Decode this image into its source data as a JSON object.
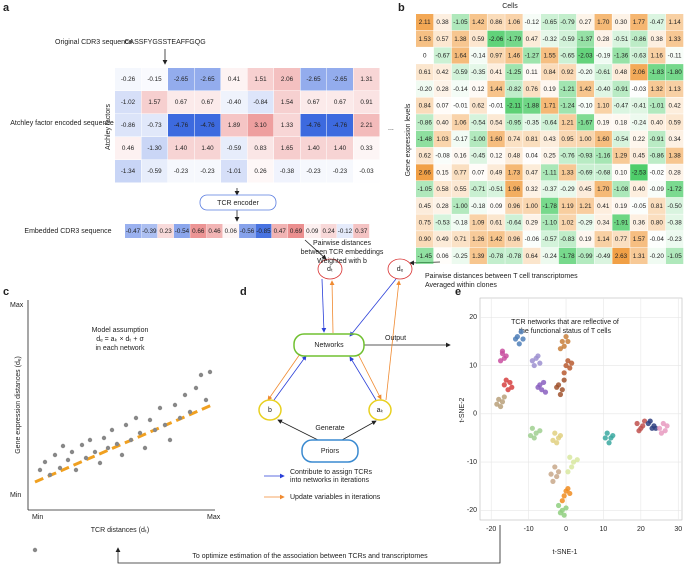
{
  "panel_letters": [
    "a",
    "b",
    "c",
    "d",
    "e"
  ],
  "panel_a": {
    "original_label": "Original CDR3 sequence",
    "sequence": "CASSFYGSSTEAFFGQG",
    "factors_label": "Atchley factors",
    "encoded_label": "Atchley factor encoded sequence",
    "ellipsis": "...",
    "matrix": [
      [
        "-0.26",
        "-0.15",
        "-2.65",
        "-2.65",
        "0.41",
        "1.51",
        "2.06",
        "-2.65",
        "-2.65",
        "1.31"
      ],
      [
        "-1.02",
        "1.57",
        "0.67",
        "0.67",
        "-0.40",
        "-0.84",
        "1.54",
        "0.67",
        "0.67",
        "0.91"
      ],
      [
        "-0.86",
        "-0.73",
        "-4.76",
        "-4.76",
        "1.89",
        "3.10",
        "1.33",
        "-4.76",
        "-4.76",
        "2.21"
      ],
      [
        "0.46",
        "-1.30",
        "1.40",
        "1.40",
        "-0.59",
        "0.83",
        "1.65",
        "1.40",
        "1.40",
        "0.33"
      ],
      [
        "-1.34",
        "-0.59",
        "-0.23",
        "-0.23",
        "-1.01",
        "0.26",
        "-0.38",
        "-0.23",
        "-0.23",
        "-0.03"
      ]
    ],
    "encoder": "TCR encoder",
    "embedded_label": "Embedded CDR3 sequence",
    "embedded": [
      "-0.47",
      "-0.39",
      "0.23",
      "-0.54",
      "0.66",
      "0.46",
      "0.06",
      "-0.56",
      "-0.85",
      "0.47",
      "0.69",
      "0.09",
      "0.24",
      "-0.12",
      "0.37"
    ],
    "tcr_distance_note": [
      "Pairwise distances",
      "between TCR embeddings",
      "Weighted with b"
    ]
  },
  "panel_b": {
    "columns_label": "Cells",
    "rows_label": "Gene expression levels",
    "matrix": [
      [
        "2.11",
        "0.38",
        "-1.05",
        "1.42",
        "0.86",
        "1.06",
        "-0.12",
        "-0.65",
        "-0.79",
        "0.27",
        "1.70",
        "0.30",
        "1.77",
        "-0.47",
        "1.14"
      ],
      [
        "1.53",
        "0.57",
        "1.38",
        "0.59",
        "-2.06",
        "-1.79",
        "0.47",
        "-0.32",
        "-0.59",
        "-1.37",
        "0.28",
        "-0.51",
        "-0.86",
        "0.38",
        "1.33"
      ],
      [
        "0",
        "-0.67",
        "1.64",
        "-0.14",
        "0.97",
        "1.46",
        "-1.27",
        "1.55",
        "-0.65",
        "-2.03",
        "-0.19",
        "-1.36",
        "-0.63",
        "1.16",
        "-0.11"
      ],
      [
        "0.61",
        "0.42",
        "-0.59",
        "-0.35",
        "0.41",
        "-1.25",
        "0.11",
        "0.84",
        "0.92",
        "-0.20",
        "-0.61",
        "0.48",
        "2.06",
        "-1.83",
        "-1.80"
      ],
      [
        "-0.20",
        "0.28",
        "-0.14",
        "0.12",
        "1.44",
        "-0.82",
        "0.76",
        "0.19",
        "-1.21",
        "1.42",
        "-0.40",
        "-0.91",
        "-0.03",
        "1.32",
        "1.13"
      ],
      [
        "0.84",
        "0.07",
        "-0.01",
        "0.62",
        "-0.01",
        "-2.11",
        "-1.88",
        "1.71",
        "-1.24",
        "-0.10",
        "1.10",
        "-0.47",
        "-0.41",
        "-1.01",
        "0.42"
      ],
      [
        "-0.86",
        "0.40",
        "1.06",
        "-0.54",
        "0.54",
        "-0.95",
        "-0.35",
        "-0.64",
        "1.21",
        "-1.67",
        "0.19",
        "0.18",
        "-0.24",
        "0.40",
        "0.59"
      ],
      [
        "-1.48",
        "1.03",
        "-0.17",
        "-1.00",
        "1.60",
        "0.74",
        "0.81",
        "0.43",
        "0.95",
        "1.00",
        "1.60",
        "-0.54",
        "0.22",
        "-0.91",
        "0.34"
      ],
      [
        "0.62",
        "-0.08",
        "0.16",
        "-0.45",
        "0.12",
        "0.48",
        "0.04",
        "0.25",
        "-0.76",
        "-0.93",
        "-1.16",
        "1.29",
        "0.45",
        "-0.86",
        "1.38"
      ],
      [
        "2.66",
        "0.15",
        "0.77",
        "0.07",
        "0.49",
        "1.73",
        "0.47",
        "-1.11",
        "1.33",
        "-0.69",
        "-0.68",
        "0.10",
        "-2.53",
        "-0.02",
        "0.28"
      ],
      [
        "-1.05",
        "0.58",
        "0.55",
        "-0.71",
        "-0.51",
        "1.96",
        "0.32",
        "-0.37",
        "-0.29",
        "0.45",
        "1.70",
        "-1.08",
        "0.40",
        "-0.09",
        "-1.72"
      ],
      [
        "0.45",
        "0.28",
        "-1.00",
        "-0.18",
        "0.09",
        "0.96",
        "1.00",
        "-1.78",
        "1.19",
        "1.21",
        "0.41",
        "0.19",
        "-0.05",
        "0.81",
        "-0.50"
      ],
      [
        "0.75",
        "-0.53",
        "-0.18",
        "1.09",
        "0.61",
        "-0.64",
        "0.29",
        "-1.10",
        "1.02",
        "-0.29",
        "0.34",
        "-1.91",
        "0.36",
        "0.80",
        "-0.38"
      ],
      [
        "0.90",
        "0.49",
        "0.71",
        "1.26",
        "1.42",
        "0.96",
        "-0.06",
        "-0.57",
        "-0.83",
        "0.19",
        "1.14",
        "0.77",
        "1.57",
        "-0.04",
        "-0.23"
      ],
      [
        "-1.45",
        "0.06",
        "-0.25",
        "1.39",
        "-0.78",
        "-0.78",
        "0.64",
        "-0.24",
        "-1.78",
        "-0.99",
        "-0.49",
        "2.63",
        "1.31",
        "-0.20",
        "-1.05"
      ]
    ],
    "transcriptome_note": [
      "Pairwise distances between T cell transcriptomes",
      "Averaged within clones"
    ]
  },
  "panel_c": {
    "model_lines": [
      "Model assumption",
      "dₑ = aₖ × dₜ + σ",
      "in each network"
    ],
    "ylabel": "Gene expression distances (dₑ)",
    "xlabel": "TCR distances (dₜ)",
    "y_max": "Max",
    "y_min": "Min",
    "x_min": "Min",
    "x_max": "Max"
  },
  "panel_d": {
    "node_dt": "dₜ",
    "node_de": "dₑ",
    "networks": "Networks",
    "node_b": "b",
    "node_ak": "aₖ",
    "priors": "Priors",
    "generate": "Generate",
    "output": "Output",
    "legend_blue": [
      "Contribute to assign TCRs",
      "into networks in iterations"
    ],
    "legend_orange": "Update variables in iterations"
  },
  "bottom_note": "To optimize estimation of the association between TCRs and transcriptomes",
  "chart_data": {
    "type": "scatter",
    "title": [
      "TCR networks that are reflective of",
      "the functional status of T cells"
    ],
    "xlabel": "t-SNE-1",
    "ylabel": "t-SNE-2",
    "xlim": [
      -23,
      31
    ],
    "ylim": [
      -22,
      24
    ],
    "xticks": [
      -20,
      -10,
      0,
      10,
      20,
      30
    ],
    "yticks": [
      -20,
      -10,
      0,
      10,
      20
    ],
    "grid": true,
    "series": [
      {
        "color": "#4f7fb8",
        "x": [
          -13,
          -12,
          -11.5,
          -12.5,
          -13.5
        ],
        "y": [
          16,
          17,
          15.5,
          14.5,
          15.5
        ]
      },
      {
        "color": "#c94fa0",
        "x": [
          -17,
          -16.5,
          -17.5,
          -16,
          -17
        ],
        "y": [
          12.5,
          11.5,
          11,
          12,
          13
        ]
      },
      {
        "color": "#9c8fd0",
        "x": [
          -9,
          -8,
          -7,
          -8.5,
          -7.5
        ],
        "y": [
          11,
          11.5,
          10.5,
          10,
          12
        ]
      },
      {
        "color": "#c87f3a",
        "x": [
          -1,
          0,
          -0.5,
          0.5,
          -1.5
        ],
        "y": [
          15,
          16,
          14,
          15,
          13.5
        ]
      },
      {
        "color": "#d64040",
        "x": [
          -16,
          -15,
          -15.5,
          -14.5,
          -16.5
        ],
        "y": [
          7,
          6.5,
          5,
          5.5,
          6
        ]
      },
      {
        "color": "#b8a07a",
        "x": [
          -18,
          -17,
          -17.5,
          -16.5,
          -18.5
        ],
        "y": [
          3,
          2.5,
          1.5,
          3.5,
          2
        ]
      },
      {
        "color": "#8a5fbf",
        "x": [
          -7,
          -6,
          -6.5,
          -7.5,
          -5.5
        ],
        "y": [
          6,
          6.5,
          5,
          5.5,
          4.5
        ]
      },
      {
        "color": "#a0522d",
        "x": [
          -2,
          -1,
          -1.5,
          -2.5,
          -0.5
        ],
        "y": [
          6,
          5,
          4,
          5.5,
          7
        ]
      },
      {
        "color": "#b85a30",
        "x": [
          0,
          1,
          0.5,
          -0.5,
          1.5
        ],
        "y": [
          10,
          9.5,
          11,
          8.5,
          10.5
        ]
      },
      {
        "color": "#9fcf8f",
        "x": [
          -9,
          -8,
          -8.5,
          -7,
          -9.5
        ],
        "y": [
          -3,
          -4,
          -5,
          -3.5,
          -4.5
        ]
      },
      {
        "color": "#e0d080",
        "x": [
          -3,
          -2,
          -2.5,
          -1.5,
          -3.5
        ],
        "y": [
          -4,
          -5,
          -6,
          -4.5,
          -5.5
        ]
      },
      {
        "color": "#3aa8a0",
        "x": [
          11,
          12,
          11.5,
          12.5,
          10.5
        ],
        "y": [
          -4,
          -5,
          -6,
          -4.5,
          -5
        ]
      },
      {
        "color": "#c0504d",
        "x": [
          19,
          20,
          21,
          19.5,
          20.5
        ],
        "y": [
          -2,
          -3,
          -1.5,
          -3.5,
          -2.5
        ]
      },
      {
        "color": "#2f3f80",
        "x": [
          22,
          23,
          22.5,
          23.5,
          24
        ],
        "y": [
          -2,
          -3,
          -1.5,
          -2.5,
          -3
        ]
      },
      {
        "color": "#e89ac0",
        "x": [
          25,
          26,
          26.5,
          25.5,
          27
        ],
        "y": [
          -3,
          -2,
          -3.5,
          -4,
          -2.5
        ]
      },
      {
        "color": "#c8a88a",
        "x": [
          -3,
          -2,
          -4,
          -2.5,
          -3.5
        ],
        "y": [
          -11,
          -12,
          -12.5,
          -13,
          -14
        ]
      },
      {
        "color": "#d8e8a0",
        "x": [
          1,
          2,
          1.5,
          3,
          0.5
        ],
        "y": [
          -9,
          -10,
          -11,
          -9.5,
          -12
        ]
      },
      {
        "color": "#f08c20",
        "x": [
          0,
          1,
          -0.5,
          0.5,
          -1
        ],
        "y": [
          -16,
          -16.5,
          -17,
          -15.5,
          -18
        ]
      },
      {
        "color": "#8fcf7f",
        "x": [
          -1,
          -2,
          -0.5,
          -1.5,
          0
        ],
        "y": [
          -20,
          -19,
          -21,
          -20.5,
          -19.5
        ]
      }
    ]
  }
}
